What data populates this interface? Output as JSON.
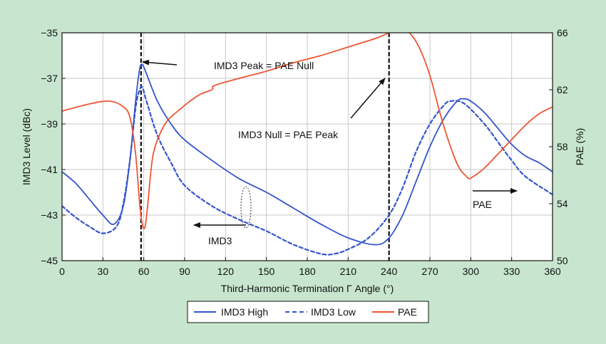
{
  "chart_data": {
    "type": "line",
    "xlabel": "Third-Harmonic Termination Γ Angle (°)",
    "ylabel_left": "IMD3 Level (dBc)",
    "ylabel_right": "PAE (%)",
    "xlim": [
      0,
      360
    ],
    "ylim_left": [
      -45,
      -35
    ],
    "ylim_right": [
      50,
      66
    ],
    "x_ticks": [
      "0",
      "30",
      "60",
      "90",
      "120",
      "150",
      "180",
      "210",
      "240",
      "270",
      "300",
      "330",
      "360"
    ],
    "y_left_ticks": [
      "−35",
      "−37",
      "−39",
      "−41",
      "−43",
      "−45"
    ],
    "y_right_ticks": [
      "66",
      "62",
      "58",
      "54",
      "50"
    ],
    "grid": true,
    "legend_position": "bottom-center",
    "series": [
      {
        "name": "IMD3 High",
        "axis": "left",
        "color": "#3355cc",
        "style": "solid",
        "points": [
          [
            0,
            -41.1
          ],
          [
            10,
            -41.6
          ],
          [
            20,
            -42.3
          ],
          [
            30,
            -43
          ],
          [
            38,
            -43.4
          ],
          [
            45,
            -42.6
          ],
          [
            50,
            -40.5
          ],
          [
            54,
            -38
          ],
          [
            57,
            -36.6
          ],
          [
            59,
            -36.4
          ],
          [
            62,
            -36.8
          ],
          [
            70,
            -38
          ],
          [
            80,
            -39
          ],
          [
            90,
            -39.7
          ],
          [
            110,
            -40.6
          ],
          [
            130,
            -41.4
          ],
          [
            150,
            -42
          ],
          [
            170,
            -42.7
          ],
          [
            190,
            -43.4
          ],
          [
            210,
            -44
          ],
          [
            230,
            -44.3
          ],
          [
            240,
            -44
          ],
          [
            250,
            -43
          ],
          [
            260,
            -41.5
          ],
          [
            270,
            -40
          ],
          [
            280,
            -38.8
          ],
          [
            290,
            -38
          ],
          [
            295,
            -37.9
          ],
          [
            300,
            -38
          ],
          [
            310,
            -38.5
          ],
          [
            320,
            -39.2
          ],
          [
            330,
            -39.9
          ],
          [
            340,
            -40.4
          ],
          [
            350,
            -40.7
          ],
          [
            360,
            -41.1
          ]
        ]
      },
      {
        "name": "IMD3 Low",
        "axis": "left",
        "color": "#3355cc",
        "style": "dashed",
        "points": [
          [
            0,
            -42.6
          ],
          [
            10,
            -43.1
          ],
          [
            20,
            -43.5
          ],
          [
            30,
            -43.8
          ],
          [
            40,
            -43.5
          ],
          [
            45,
            -42.5
          ],
          [
            50,
            -40.5
          ],
          [
            54,
            -38.3
          ],
          [
            57,
            -37.5
          ],
          [
            59,
            -37.4
          ],
          [
            62,
            -38
          ],
          [
            70,
            -39.5
          ],
          [
            80,
            -40.7
          ],
          [
            90,
            -41.7
          ],
          [
            110,
            -42.6
          ],
          [
            130,
            -43.2
          ],
          [
            150,
            -43.7
          ],
          [
            170,
            -44.3
          ],
          [
            190,
            -44.7
          ],
          [
            200,
            -44.7
          ],
          [
            210,
            -44.5
          ],
          [
            225,
            -44
          ],
          [
            240,
            -43
          ],
          [
            250,
            -41.8
          ],
          [
            260,
            -40.2
          ],
          [
            270,
            -39
          ],
          [
            280,
            -38.2
          ],
          [
            285,
            -38
          ],
          [
            295,
            -38.1
          ],
          [
            310,
            -39
          ],
          [
            320,
            -39.8
          ],
          [
            330,
            -40.6
          ],
          [
            340,
            -41.3
          ],
          [
            360,
            -42.1
          ]
        ]
      },
      {
        "name": "PAE",
        "axis": "right",
        "color": "#ee5533",
        "style": "solid",
        "points": [
          [
            0,
            60.5
          ],
          [
            20,
            61
          ],
          [
            35,
            61.2
          ],
          [
            45,
            60.8
          ],
          [
            50,
            60
          ],
          [
            54,
            57.5
          ],
          [
            57,
            54
          ],
          [
            59,
            52.5
          ],
          [
            61,
            52.4
          ],
          [
            63,
            54
          ],
          [
            67,
            57.5
          ],
          [
            75,
            59.5
          ],
          [
            85,
            60.5
          ],
          [
            100,
            61.6
          ],
          [
            110,
            62
          ],
          [
            112,
            62.3
          ],
          [
            130,
            62.8
          ],
          [
            150,
            63.3
          ],
          [
            170,
            63.9
          ],
          [
            190,
            64.4
          ],
          [
            210,
            65
          ],
          [
            230,
            65.6
          ],
          [
            240,
            66
          ],
          [
            245,
            66.2
          ],
          [
            250,
            66.2
          ],
          [
            255,
            66
          ],
          [
            262,
            65
          ],
          [
            270,
            63
          ],
          [
            280,
            59.5
          ],
          [
            290,
            56.8
          ],
          [
            297,
            55.9
          ],
          [
            300,
            55.8
          ],
          [
            310,
            56.5
          ],
          [
            320,
            57.5
          ],
          [
            330,
            58.5
          ],
          [
            340,
            59.5
          ],
          [
            350,
            60.3
          ],
          [
            360,
            60.8
          ]
        ]
      }
    ],
    "vlines": [
      58,
      240
    ],
    "annotations": [
      {
        "text": "IMD3 Peak = PAE Null"
      },
      {
        "text": "IMD3 Null = PAE Peak"
      },
      {
        "text": "IMD3"
      },
      {
        "text": "PAE"
      }
    ]
  }
}
